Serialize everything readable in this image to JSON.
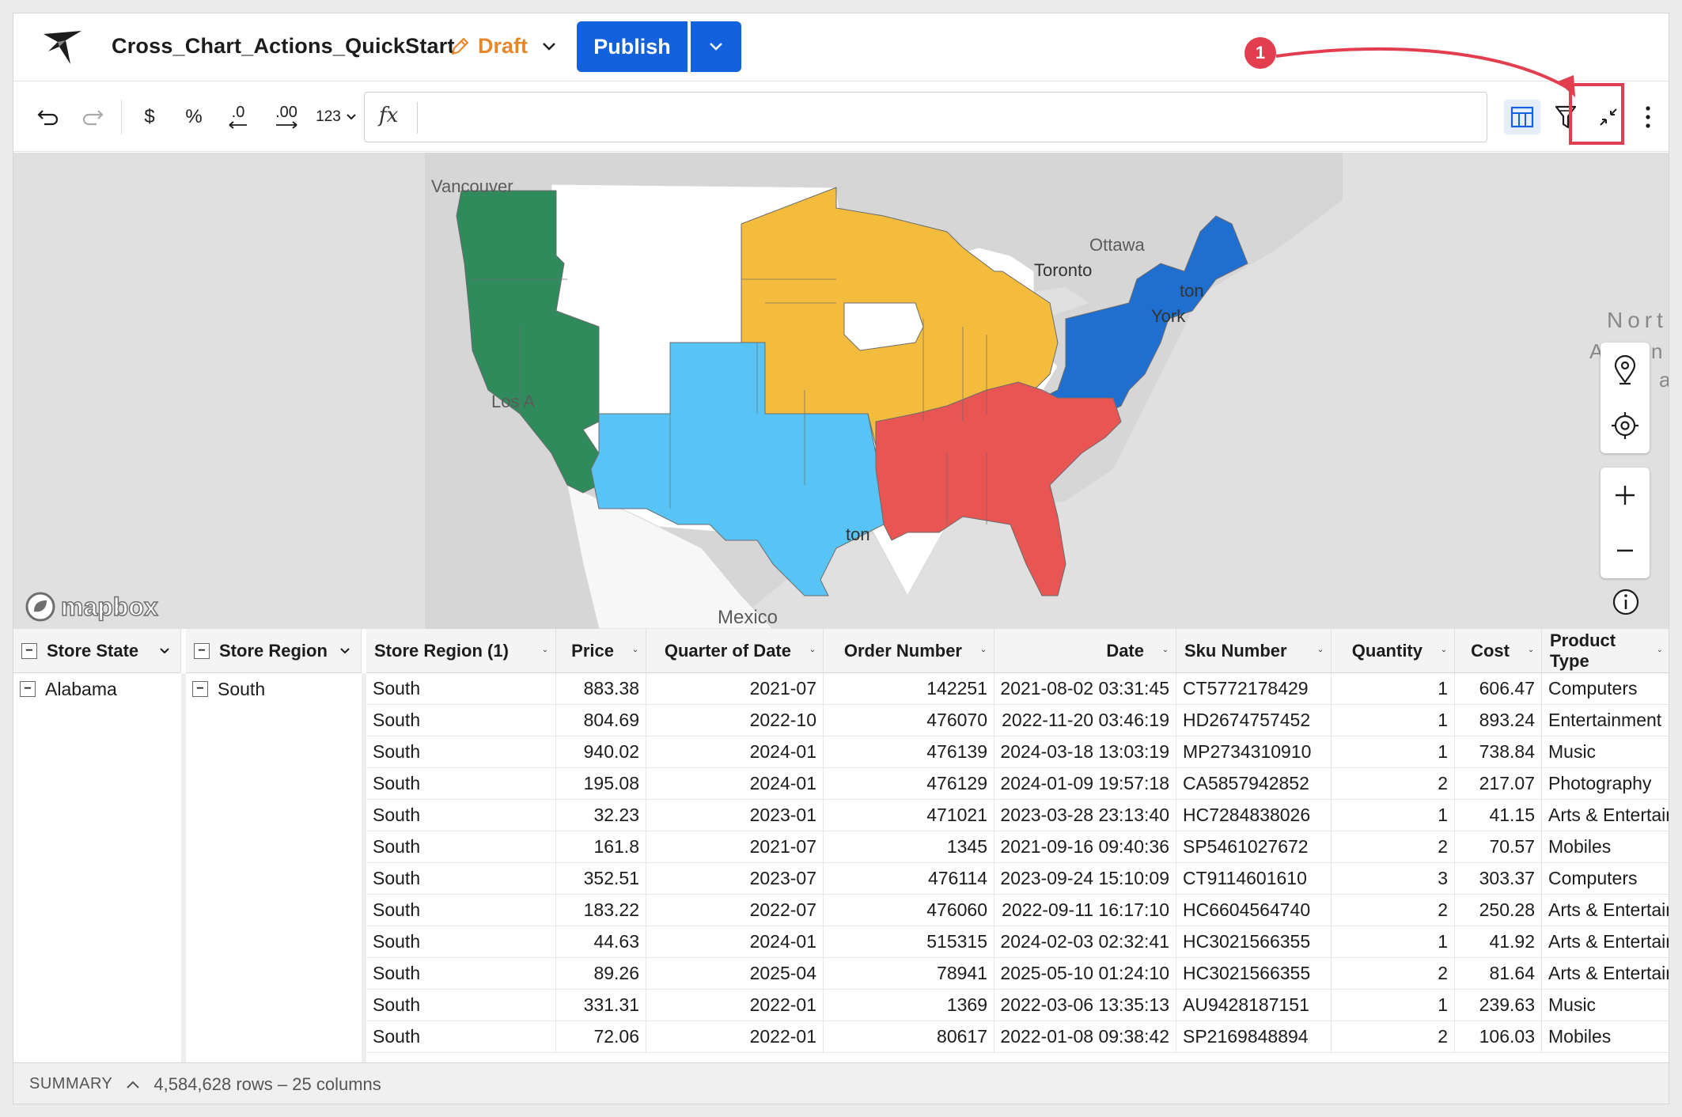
{
  "header": {
    "doc_title": "Cross_Chart_Actions_QuickStart",
    "draft_label": "Draft",
    "publish_label": "Publish"
  },
  "annotation": {
    "badge": "1"
  },
  "toolbar": {
    "currency_label": "$",
    "percent_label": "%",
    "decrease_decimals_label": ".0",
    "increase_decimals_label": ".00",
    "number_format_label": "123",
    "formula_label": "fx",
    "formula_value": ""
  },
  "map": {
    "attribution": "mapbox",
    "labels": {
      "vancouver": "Vancouver",
      "ottawa": "Ottawa",
      "toronto": "Toronto",
      "boston_partial": "ton",
      "new_york_partial": "York",
      "los_angeles_partial": "Los A",
      "houston_partial": "ton",
      "mexico": "Mexico",
      "north_partial": "Nort",
      "atlantic_partial_a": "A",
      "atlantic_partial_n": "n",
      "atlantic_partial_c": "a"
    },
    "region_colors": {
      "West": "#2f8b5c",
      "Southwest": "#58c4f6",
      "Midwest": "#f4bc3c",
      "Northeast": "#1f6fd1",
      "South": "#e85552",
      "Unassigned": "#ffffff"
    }
  },
  "table": {
    "group_headers": {
      "store_state": "Store State",
      "store_region": "Store Region"
    },
    "group_values": {
      "store_state": "Alabama",
      "store_region": "South"
    },
    "columns": [
      "Store Region (1)",
      "Price",
      "Quarter of Date",
      "Order Number",
      "Date",
      "Sku Number",
      "Quantity",
      "Cost",
      "Product Type"
    ],
    "rows": [
      [
        "South",
        "883.38",
        "2021-07",
        "142251",
        "2021-08-02 03:31:45",
        "CT5772178429",
        "1",
        "606.47",
        "Computers"
      ],
      [
        "South",
        "804.69",
        "2022-10",
        "476070",
        "2022-11-20 03:46:19",
        "HD2674757452",
        "1",
        "893.24",
        "Entertainment"
      ],
      [
        "South",
        "940.02",
        "2024-01",
        "476139",
        "2024-03-18 13:03:19",
        "MP2734310910",
        "1",
        "738.84",
        "Music"
      ],
      [
        "South",
        "195.08",
        "2024-01",
        "476129",
        "2024-01-09 19:57:18",
        "CA5857942852",
        "2",
        "217.07",
        "Photography"
      ],
      [
        "South",
        "32.23",
        "2023-01",
        "471021",
        "2023-03-28 23:13:40",
        "HC7284838026",
        "1",
        "41.15",
        "Arts & Entertain"
      ],
      [
        "South",
        "161.8",
        "2021-07",
        "1345",
        "2021-09-16 09:40:36",
        "SP5461027672",
        "2",
        "70.57",
        "Mobiles"
      ],
      [
        "South",
        "352.51",
        "2023-07",
        "476114",
        "2023-09-24 15:10:09",
        "CT9114601610",
        "3",
        "303.37",
        "Computers"
      ],
      [
        "South",
        "183.22",
        "2022-07",
        "476060",
        "2022-09-11 16:17:10",
        "HC6604564740",
        "2",
        "250.28",
        "Arts & Entertain"
      ],
      [
        "South",
        "44.63",
        "2024-01",
        "515315",
        "2024-02-03 02:32:41",
        "HC3021566355",
        "1",
        "41.92",
        "Arts & Entertain"
      ],
      [
        "South",
        "89.26",
        "2025-04",
        "78941",
        "2025-05-10 01:24:10",
        "HC3021566355",
        "2",
        "81.64",
        "Arts & Entertain"
      ],
      [
        "South",
        "331.31",
        "2022-01",
        "1369",
        "2022-03-06 13:35:13",
        "AU9428187151",
        "1",
        "239.63",
        "Music"
      ],
      [
        "South",
        "72.06",
        "2022-01",
        "80617",
        "2022-01-08 09:38:42",
        "SP2169848894",
        "2",
        "106.03",
        "Mobiles"
      ]
    ]
  },
  "summary": {
    "label": "SUMMARY",
    "counts": "4,584,628 rows – 25 columns"
  }
}
